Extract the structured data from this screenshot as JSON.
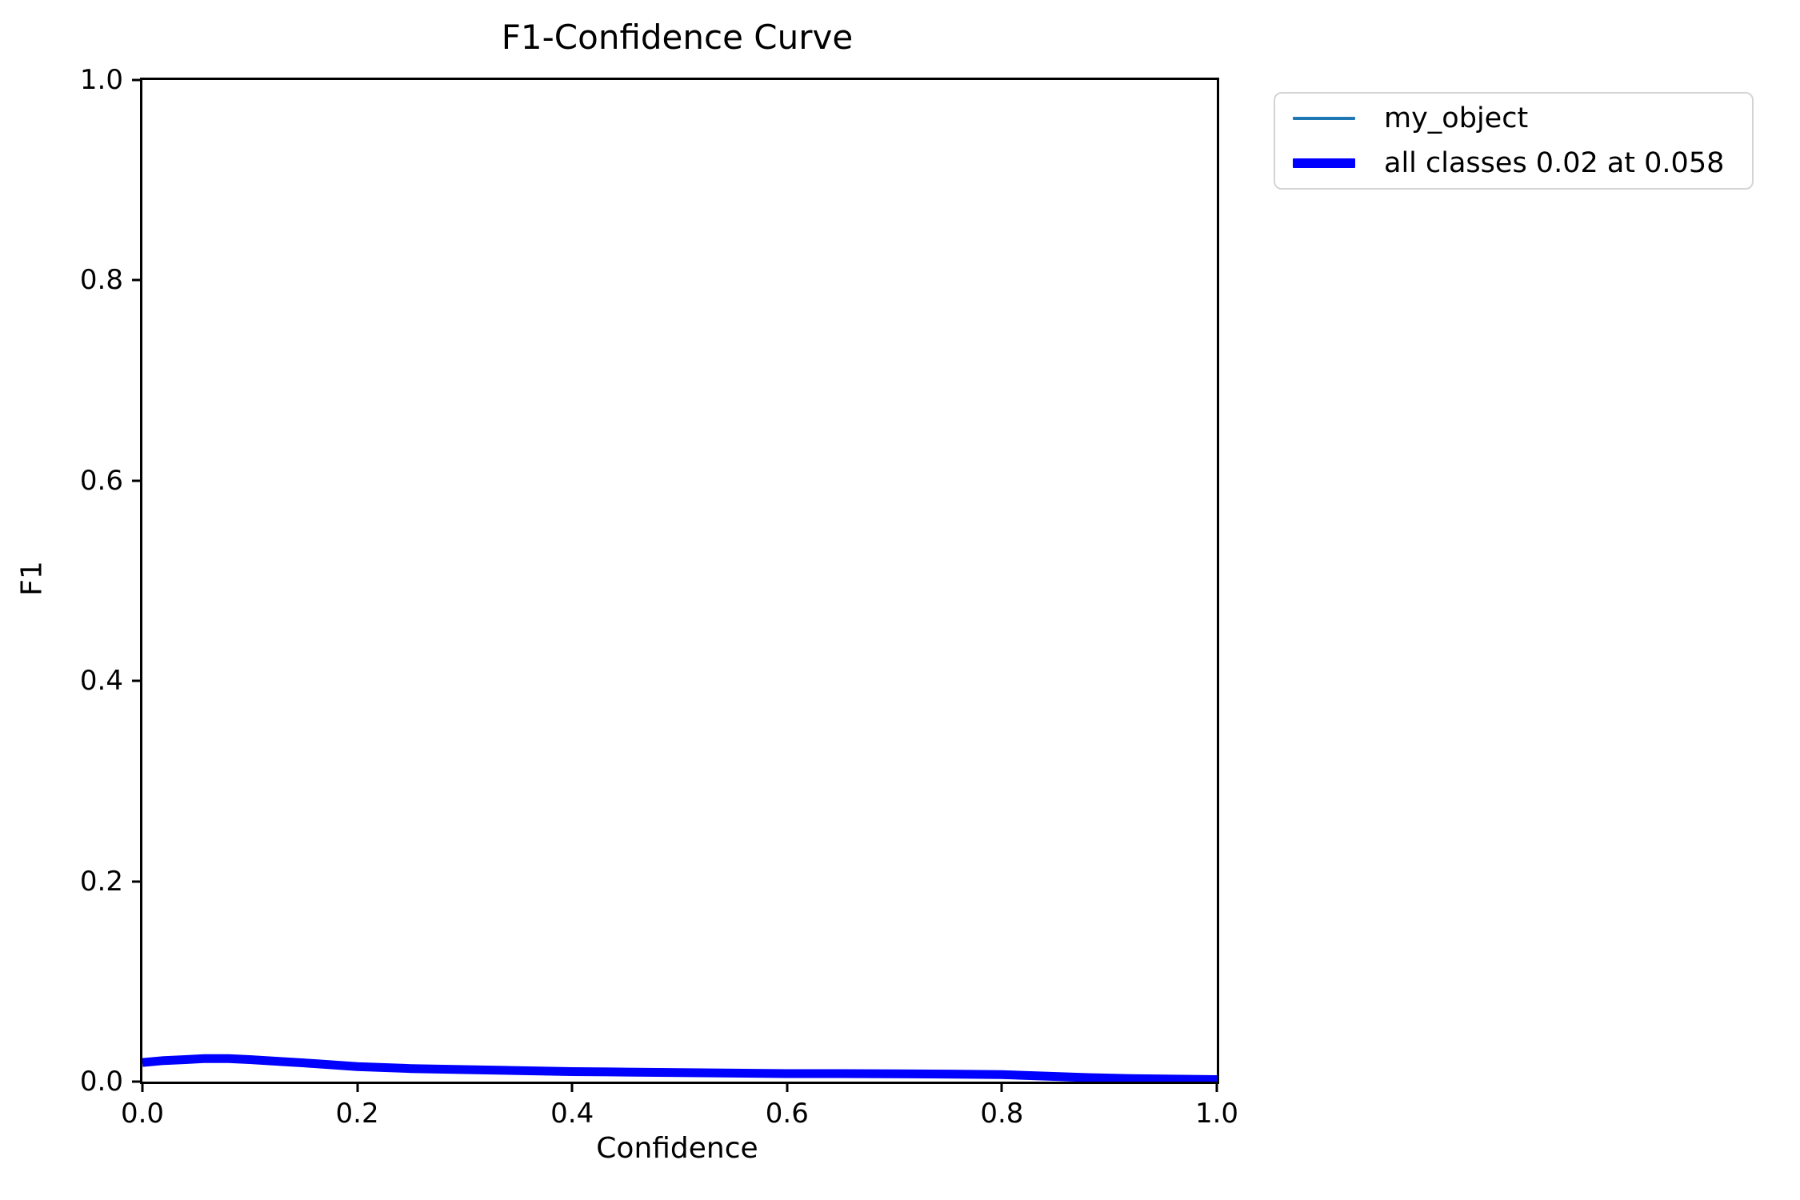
{
  "title": "F1-Confidence Curve",
  "axes": {
    "xlabel": "Confidence",
    "ylabel": "F1",
    "x_tick_labels": [
      "0.0",
      "0.2",
      "0.4",
      "0.6",
      "0.8",
      "1.0"
    ],
    "y_tick_labels": [
      "0.0",
      "0.2",
      "0.4",
      "0.6",
      "0.8",
      "1.0"
    ],
    "x_tick_values": [
      0.0,
      0.2,
      0.4,
      0.6,
      0.8,
      1.0
    ],
    "y_tick_values": [
      0.0,
      0.2,
      0.4,
      0.6,
      0.8,
      1.0
    ]
  },
  "legend": {
    "entries": [
      {
        "label": "my_object",
        "color": "#1f77b4",
        "swatch_thickness": 4
      },
      {
        "label": "all classes 0.02 at 0.058",
        "color": "#0000ff",
        "swatch_thickness": 12
      }
    ]
  },
  "chart_data": {
    "type": "line",
    "title": "F1-Confidence Curve",
    "xlabel": "Confidence",
    "ylabel": "F1",
    "xlim": [
      0,
      1
    ],
    "ylim": [
      0,
      1
    ],
    "grid": false,
    "legend_position": "upper right, outside axes",
    "x": [
      0.0,
      0.02,
      0.04,
      0.058,
      0.08,
      0.1,
      0.13,
      0.16,
      0.2,
      0.25,
      0.3,
      0.35,
      0.4,
      0.45,
      0.5,
      0.55,
      0.6,
      0.65,
      0.7,
      0.75,
      0.8,
      0.84,
      0.88,
      0.92,
      0.96,
      1.0
    ],
    "series": [
      {
        "name": "my_object",
        "color": "#1f77b4",
        "stroke_px": 3.5,
        "values": [
          0.019,
          0.022,
          0.0235,
          0.0245,
          0.024,
          0.023,
          0.0205,
          0.018,
          0.015,
          0.013,
          0.012,
          0.011,
          0.01,
          0.0095,
          0.009,
          0.0085,
          0.008,
          0.008,
          0.0078,
          0.0075,
          0.007,
          0.0055,
          0.004,
          0.003,
          0.0025,
          0.002
        ]
      },
      {
        "name": "all classes 0.02 at 0.058",
        "color": "#0000ff",
        "stroke_px": 11,
        "values": [
          0.019,
          0.021,
          0.022,
          0.023,
          0.023,
          0.022,
          0.02,
          0.018,
          0.015,
          0.013,
          0.012,
          0.011,
          0.01,
          0.0095,
          0.009,
          0.0085,
          0.008,
          0.008,
          0.0078,
          0.0075,
          0.007,
          0.0055,
          0.004,
          0.003,
          0.0025,
          0.002
        ]
      }
    ],
    "annotations": {
      "best_f1": 0.02,
      "best_confidence": 0.058
    }
  }
}
